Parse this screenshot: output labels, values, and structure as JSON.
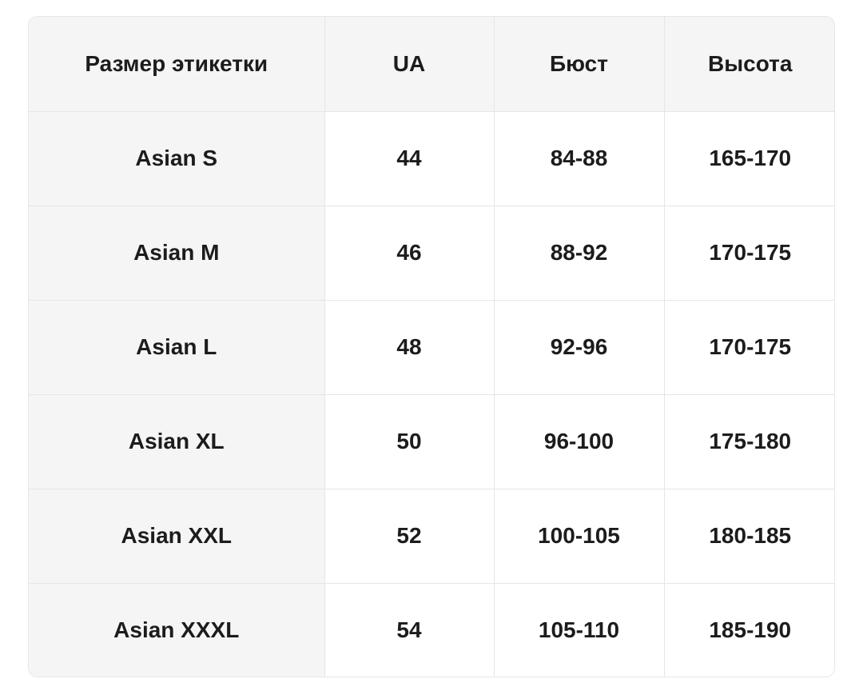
{
  "page": {
    "background": "#ffffff"
  },
  "size_chart": {
    "headers": [
      "Размер этикетки",
      "UA",
      "Бюст",
      "Высота"
    ],
    "rows": [
      [
        "Asian S",
        "44",
        "84-88",
        "165-170"
      ],
      [
        "Asian M",
        "46",
        "88-92",
        "170-175"
      ],
      [
        "Asian L",
        "48",
        "92-96",
        "170-175"
      ],
      [
        "Asian XL",
        "50",
        "96-100",
        "175-180"
      ],
      [
        "Asian XXL",
        "52",
        "100-105",
        "180-185"
      ],
      [
        "Asian XXXL",
        "54",
        "105-110",
        "185-190"
      ]
    ],
    "colors": {
      "header_bg": "#f5f5f5",
      "first_col_bg": "#f5f5f5",
      "cell_bg": "#ffffff",
      "border": "#e6e6e6",
      "text": "#1c1c1c",
      "page_bg": "#ffffff"
    }
  }
}
